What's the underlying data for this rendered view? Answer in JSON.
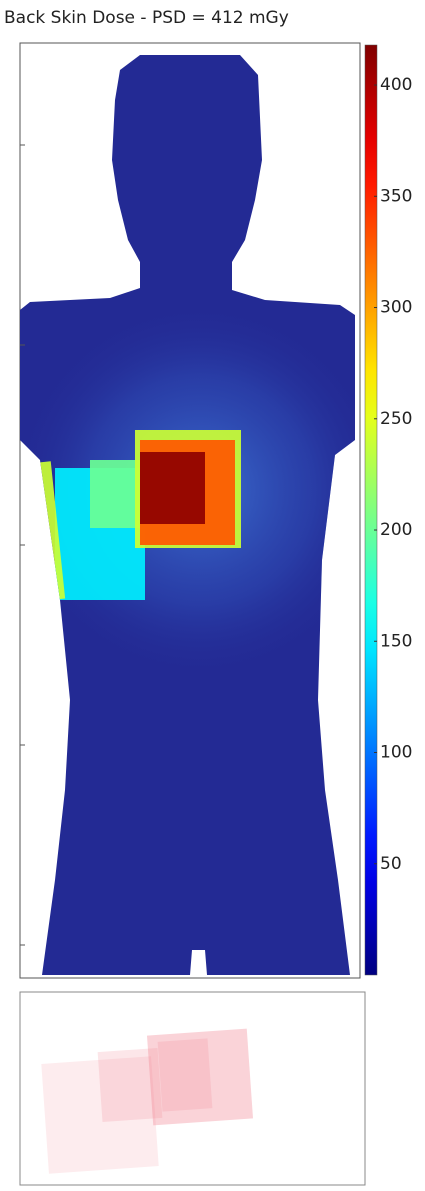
{
  "chart_data": {
    "type": "heatmap",
    "title": "Back Skin Dose - PSD = 412 mGy",
    "values": [
      150,
      200,
      240,
      240,
      330,
      412
    ],
    "clim": [
      0,
      418
    ],
    "cticks": [
      50,
      100,
      150,
      200,
      250,
      300,
      350,
      400
    ]
  }
}
